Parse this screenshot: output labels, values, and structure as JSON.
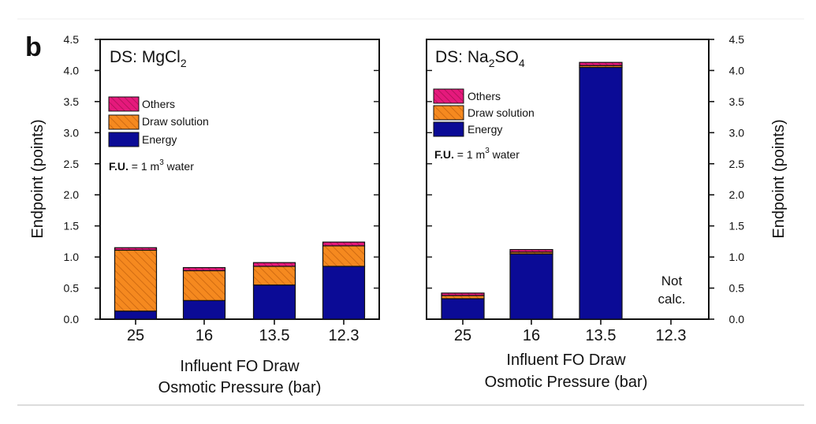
{
  "figure": {
    "panel_label": "b",
    "units_note_prefix": "F.U.",
    "units_note_rest": " = 1 m",
    "units_note_sup": "3",
    "units_note_tail": " water"
  },
  "colors": {
    "energy": "#0b0b96",
    "draw_solution": "#f5891f",
    "draw_hatch": "#c8640f",
    "others": "#e5197c",
    "others_hatch": "#a0104f"
  },
  "chart_data": [
    {
      "type": "bar",
      "stacked": true,
      "title_prefix": "DS: MgCl",
      "title_sub": "2",
      "title_tail": "",
      "categories": [
        "25",
        "16",
        "13.5",
        "12.3"
      ],
      "series": [
        {
          "name": "Energy",
          "values": [
            0.13,
            0.3,
            0.55,
            0.85
          ]
        },
        {
          "name": "Draw solution",
          "values": [
            0.98,
            0.48,
            0.3,
            0.33
          ]
        },
        {
          "name": "Others",
          "values": [
            0.04,
            0.05,
            0.06,
            0.06
          ]
        }
      ],
      "ylabel": "Endpoint  (points)",
      "xlabel_line1": "Influent FO Draw",
      "xlabel_line2": "Osmotic Pressure  (bar)",
      "ylim": [
        0,
        4.5
      ],
      "yticks": [
        "0.0",
        "0.5",
        "1.0",
        "1.5",
        "2.0",
        "2.5",
        "3.0",
        "3.5",
        "4.0",
        "4.5"
      ],
      "legend_position": "upper-left",
      "legend": [
        "Others",
        "Draw solution",
        "Energy"
      ]
    },
    {
      "type": "bar",
      "stacked": true,
      "title_prefix": "DS: Na",
      "title_sub": "2",
      "title_tail": "SO",
      "title_sub2": "4",
      "categories": [
        "25",
        "16",
        "13.5",
        "12.3"
      ],
      "series": [
        {
          "name": "Energy",
          "values": [
            0.33,
            1.05,
            4.05,
            null
          ]
        },
        {
          "name": "Draw solution",
          "values": [
            0.05,
            0.03,
            0.03,
            null
          ]
        },
        {
          "name": "Others",
          "values": [
            0.04,
            0.04,
            0.05,
            null
          ]
        }
      ],
      "ylabel": "Endpoint  (points)",
      "xlabel_line1": "Influent FO Draw",
      "xlabel_line2": "Osmotic Pressure  (bar)",
      "ylim": [
        0,
        4.5
      ],
      "yticks": [
        "0.0",
        "0.5",
        "1.0",
        "1.5",
        "2.0",
        "2.5",
        "3.0",
        "3.5",
        "4.0",
        "4.5"
      ],
      "legend_position": "upper-left",
      "legend": [
        "Others",
        "Draw solution",
        "Energy"
      ],
      "annotation_line1": "Not",
      "annotation_line2": "calc."
    }
  ]
}
